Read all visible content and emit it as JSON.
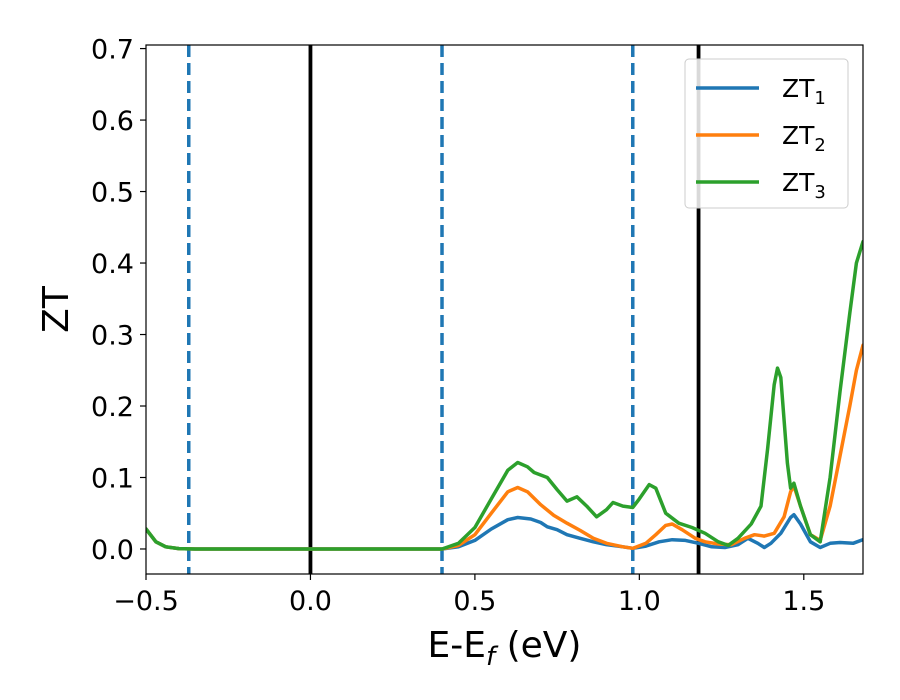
{
  "chart_data": {
    "type": "line",
    "xlabel": "E-E",
    "xlabel_sub": "f",
    "xlabel_unit": " (eV)",
    "ylabel": "ZT",
    "xlim": [
      -0.5,
      1.68
    ],
    "ylim": [
      -0.035,
      0.705
    ],
    "x_ticks": [
      -0.5,
      0.0,
      0.5,
      1.0,
      1.5
    ],
    "x_tick_labels": [
      "−0.5",
      "0.0",
      "0.5",
      "1.0",
      "1.5"
    ],
    "y_ticks": [
      0.0,
      0.1,
      0.2,
      0.3,
      0.4,
      0.5,
      0.6,
      0.7
    ],
    "y_tick_labels": [
      "0.0",
      "0.1",
      "0.2",
      "0.3",
      "0.4",
      "0.5",
      "0.6",
      "0.7"
    ],
    "grid": false,
    "legend_position": "top-right",
    "vertical_lines": [
      {
        "x": -0.37,
        "style": "dashed",
        "color": "#1f77b4"
      },
      {
        "x": 0.0,
        "style": "solid",
        "color": "#000000"
      },
      {
        "x": 0.4,
        "style": "dashed",
        "color": "#1f77b4"
      },
      {
        "x": 0.98,
        "style": "dashed",
        "color": "#1f77b4"
      },
      {
        "x": 1.18,
        "style": "solid",
        "color": "#000000"
      }
    ],
    "series": [
      {
        "name": "ZT",
        "name_sub": "1",
        "color": "#1f77b4",
        "points": [
          [
            -0.5,
            0.028
          ],
          [
            -0.47,
            0.01
          ],
          [
            -0.44,
            0.003
          ],
          [
            -0.4,
            0.0005
          ],
          [
            -0.35,
            0.0
          ],
          [
            0.0,
            0.0
          ],
          [
            0.4,
            0.0
          ],
          [
            0.45,
            0.003
          ],
          [
            0.5,
            0.012
          ],
          [
            0.55,
            0.028
          ],
          [
            0.6,
            0.041
          ],
          [
            0.63,
            0.044
          ],
          [
            0.67,
            0.042
          ],
          [
            0.7,
            0.037
          ],
          [
            0.72,
            0.031
          ],
          [
            0.75,
            0.027
          ],
          [
            0.78,
            0.02
          ],
          [
            0.82,
            0.015
          ],
          [
            0.86,
            0.01
          ],
          [
            0.9,
            0.006
          ],
          [
            0.95,
            0.003
          ],
          [
            0.98,
            0.001
          ],
          [
            1.02,
            0.004
          ],
          [
            1.06,
            0.01
          ],
          [
            1.1,
            0.013
          ],
          [
            1.14,
            0.012
          ],
          [
            1.18,
            0.008
          ],
          [
            1.22,
            0.003
          ],
          [
            1.26,
            0.002
          ],
          [
            1.3,
            0.006
          ],
          [
            1.33,
            0.015
          ],
          [
            1.36,
            0.008
          ],
          [
            1.38,
            0.002
          ],
          [
            1.4,
            0.008
          ],
          [
            1.43,
            0.022
          ],
          [
            1.46,
            0.044
          ],
          [
            1.47,
            0.048
          ],
          [
            1.49,
            0.035
          ],
          [
            1.52,
            0.01
          ],
          [
            1.55,
            0.002
          ],
          [
            1.58,
            0.008
          ],
          [
            1.61,
            0.009
          ],
          [
            1.65,
            0.008
          ],
          [
            1.68,
            0.013
          ]
        ]
      },
      {
        "name": "ZT",
        "name_sub": "2",
        "color": "#ff7f0e",
        "points": [
          [
            -0.5,
            0.028
          ],
          [
            -0.47,
            0.01
          ],
          [
            -0.44,
            0.003
          ],
          [
            -0.4,
            0.0005
          ],
          [
            -0.35,
            0.0
          ],
          [
            0.0,
            0.0
          ],
          [
            0.4,
            0.0
          ],
          [
            0.45,
            0.005
          ],
          [
            0.5,
            0.02
          ],
          [
            0.55,
            0.05
          ],
          [
            0.6,
            0.08
          ],
          [
            0.63,
            0.086
          ],
          [
            0.66,
            0.08
          ],
          [
            0.7,
            0.062
          ],
          [
            0.74,
            0.047
          ],
          [
            0.78,
            0.036
          ],
          [
            0.82,
            0.026
          ],
          [
            0.86,
            0.015
          ],
          [
            0.9,
            0.008
          ],
          [
            0.95,
            0.003
          ],
          [
            0.98,
            0.001
          ],
          [
            1.02,
            0.008
          ],
          [
            1.05,
            0.02
          ],
          [
            1.08,
            0.033
          ],
          [
            1.1,
            0.035
          ],
          [
            1.13,
            0.027
          ],
          [
            1.17,
            0.015
          ],
          [
            1.2,
            0.01
          ],
          [
            1.24,
            0.007
          ],
          [
            1.28,
            0.006
          ],
          [
            1.32,
            0.015
          ],
          [
            1.35,
            0.02
          ],
          [
            1.38,
            0.018
          ],
          [
            1.41,
            0.022
          ],
          [
            1.44,
            0.045
          ],
          [
            1.46,
            0.08
          ],
          [
            1.47,
            0.088
          ],
          [
            1.49,
            0.06
          ],
          [
            1.52,
            0.02
          ],
          [
            1.55,
            0.012
          ],
          [
            1.58,
            0.06
          ],
          [
            1.61,
            0.13
          ],
          [
            1.64,
            0.2
          ],
          [
            1.66,
            0.25
          ],
          [
            1.68,
            0.285
          ]
        ]
      },
      {
        "name": "ZT",
        "name_sub": "3",
        "color": "#2ca02c",
        "points": [
          [
            -0.5,
            0.028
          ],
          [
            -0.47,
            0.01
          ],
          [
            -0.44,
            0.003
          ],
          [
            -0.4,
            0.0005
          ],
          [
            -0.35,
            0.0
          ],
          [
            0.0,
            0.0
          ],
          [
            0.4,
            0.0
          ],
          [
            0.45,
            0.008
          ],
          [
            0.5,
            0.03
          ],
          [
            0.55,
            0.07
          ],
          [
            0.6,
            0.11
          ],
          [
            0.63,
            0.121
          ],
          [
            0.66,
            0.115
          ],
          [
            0.68,
            0.107
          ],
          [
            0.72,
            0.1
          ],
          [
            0.75,
            0.083
          ],
          [
            0.78,
            0.067
          ],
          [
            0.81,
            0.073
          ],
          [
            0.84,
            0.06
          ],
          [
            0.87,
            0.045
          ],
          [
            0.9,
            0.055
          ],
          [
            0.92,
            0.065
          ],
          [
            0.95,
            0.06
          ],
          [
            0.98,
            0.058
          ],
          [
            1.0,
            0.07
          ],
          [
            1.03,
            0.09
          ],
          [
            1.05,
            0.085
          ],
          [
            1.08,
            0.05
          ],
          [
            1.12,
            0.036
          ],
          [
            1.16,
            0.03
          ],
          [
            1.2,
            0.022
          ],
          [
            1.24,
            0.01
          ],
          [
            1.27,
            0.005
          ],
          [
            1.3,
            0.015
          ],
          [
            1.34,
            0.035
          ],
          [
            1.37,
            0.06
          ],
          [
            1.39,
            0.14
          ],
          [
            1.41,
            0.23
          ],
          [
            1.42,
            0.253
          ],
          [
            1.43,
            0.24
          ],
          [
            1.45,
            0.12
          ],
          [
            1.46,
            0.085
          ],
          [
            1.47,
            0.092
          ],
          [
            1.49,
            0.06
          ],
          [
            1.52,
            0.02
          ],
          [
            1.55,
            0.01
          ],
          [
            1.58,
            0.1
          ],
          [
            1.61,
            0.22
          ],
          [
            1.64,
            0.33
          ],
          [
            1.66,
            0.4
          ],
          [
            1.68,
            0.43
          ]
        ]
      }
    ]
  }
}
